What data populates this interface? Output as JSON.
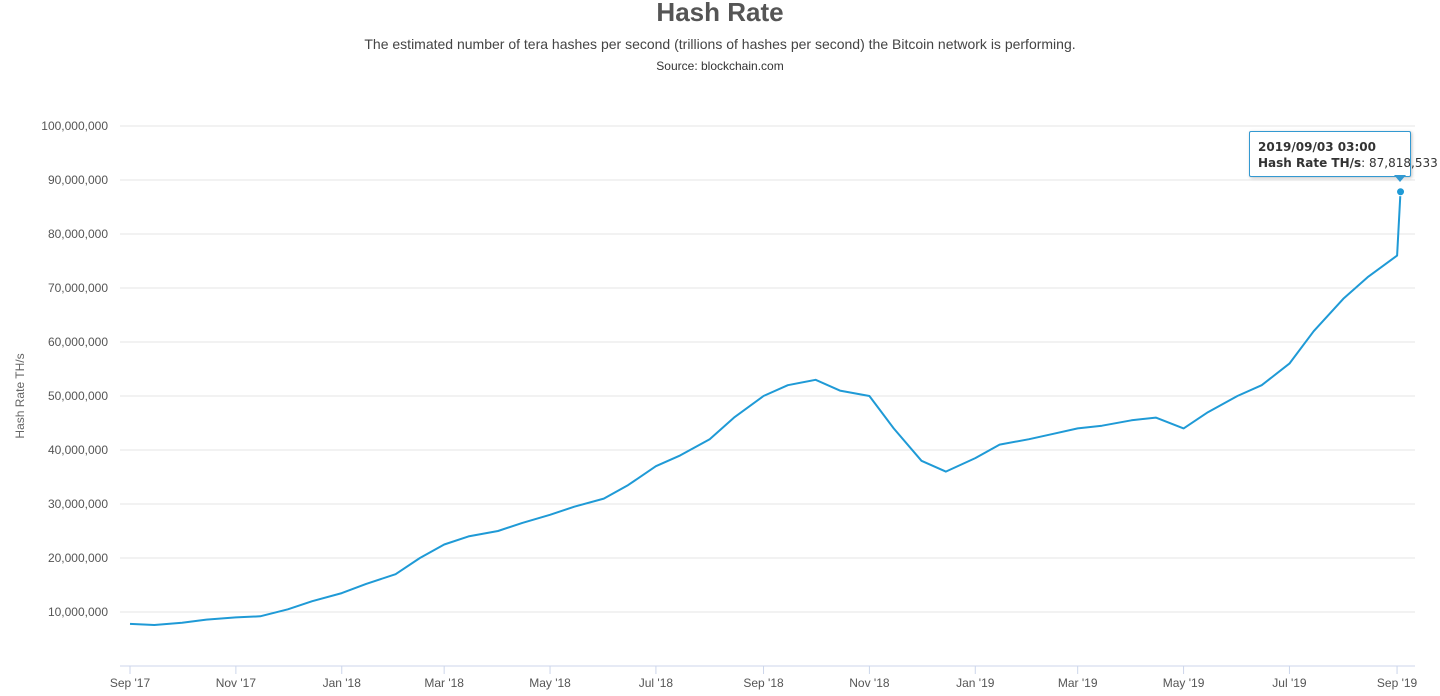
{
  "chart_data": {
    "type": "line",
    "title": "Hash Rate",
    "subtitle": "The estimated number of tera hashes per second (trillions of hashes per second) the Bitcoin network is performing.",
    "source": "Source: blockchain.com",
    "ylabel": "Hash Rate TH/s",
    "xlabel": "",
    "ylim": [
      0,
      100000000
    ],
    "xlim": [
      "2017-09-01",
      "2019-09-05"
    ],
    "y_ticks": [
      "10,000,000",
      "20,000,000",
      "30,000,000",
      "40,000,000",
      "50,000,000",
      "60,000,000",
      "70,000,000",
      "80,000,000",
      "90,000,000",
      "100,000,000"
    ],
    "x_ticks": [
      "Sep '17",
      "Nov '17",
      "Jan '18",
      "Mar '18",
      "May '18",
      "Jul '18",
      "Sep '18",
      "Nov '18",
      "Jan '19",
      "Mar '19",
      "May '19",
      "Jul '19",
      "Sep '19"
    ],
    "grid": true,
    "legend": "none",
    "line_color": "#1f9ad6",
    "series": [
      {
        "x": [
          "2017-09-01",
          "2017-09-15",
          "2017-10-01",
          "2017-10-15",
          "2017-11-01",
          "2017-11-15",
          "2017-12-01",
          "2017-12-15",
          "2018-01-01",
          "2018-01-15",
          "2018-02-01",
          "2018-02-15",
          "2018-03-01",
          "2018-03-15",
          "2018-04-01",
          "2018-04-15",
          "2018-05-01",
          "2018-05-15",
          "2018-06-01",
          "2018-06-15",
          "2018-07-01",
          "2018-07-15",
          "2018-08-01",
          "2018-08-15",
          "2018-09-01",
          "2018-09-15",
          "2018-10-01",
          "2018-10-15",
          "2018-11-01",
          "2018-11-15",
          "2018-12-01",
          "2018-12-15",
          "2019-01-01",
          "2019-01-15",
          "2019-02-01",
          "2019-02-15",
          "2019-03-01",
          "2019-03-15",
          "2019-04-01",
          "2019-04-15",
          "2019-05-01",
          "2019-05-15",
          "2019-06-01",
          "2019-06-15",
          "2019-07-01",
          "2019-07-15",
          "2019-08-01",
          "2019-08-15",
          "2019-09-01",
          "2019-09-03"
        ],
        "values": [
          7800000,
          7600000,
          8000000,
          8600000,
          9000000,
          9200000,
          10500000,
          12000000,
          13500000,
          15200000,
          17000000,
          20000000,
          22500000,
          24000000,
          25000000,
          26500000,
          28000000,
          29500000,
          31000000,
          33500000,
          37000000,
          39000000,
          42000000,
          46000000,
          50000000,
          52000000,
          53000000,
          51000000,
          50000000,
          44000000,
          38000000,
          36000000,
          38500000,
          41000000,
          42000000,
          43000000,
          44000000,
          44500000,
          45500000,
          46000000,
          44000000,
          47000000,
          50000000,
          52000000,
          56000000,
          62000000,
          68000000,
          72000000,
          76000000,
          87818533
        ]
      }
    ],
    "tooltip": {
      "date": "2019/09/03 03:00",
      "label": "Hash Rate TH/s",
      "value": "87,818,533"
    }
  }
}
